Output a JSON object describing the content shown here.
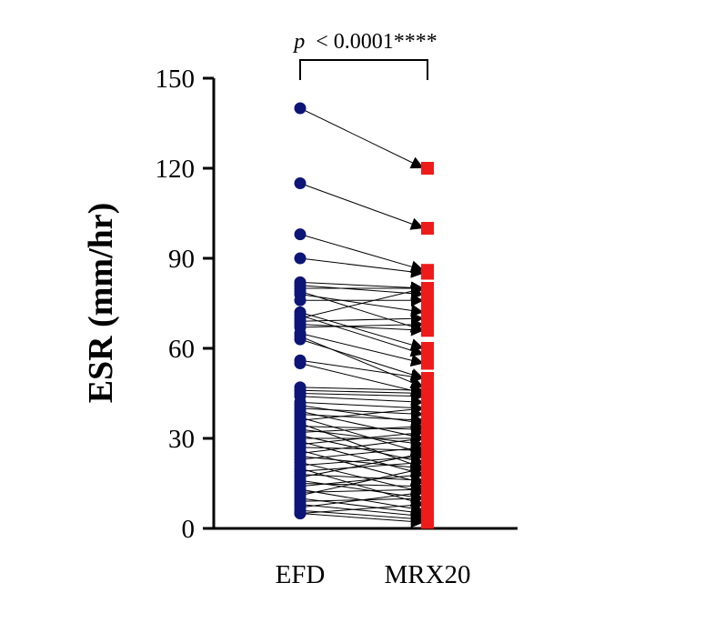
{
  "chart_data": {
    "type": "scatter",
    "subtype": "paired before-after plot",
    "categories": [
      "EFD",
      "MRX20"
    ],
    "ylabel": "ESR (mm/hr)",
    "xlabel": "",
    "ylim": [
      0,
      150
    ],
    "yticks": [
      "0",
      "30",
      "60",
      "90",
      "120",
      "150"
    ],
    "grid": false,
    "legend": "none",
    "colors": {
      "EFD": "#0d1577",
      "MRX20": "#ee1b1b",
      "lines": "#000000",
      "axes": "#000000"
    },
    "markers": {
      "EFD": "circle",
      "MRX20": "square"
    },
    "annotation": {
      "p_symbol": "p",
      "text": "< 0.0001****"
    },
    "pairs": [
      [
        140,
        120
      ],
      [
        115,
        100
      ],
      [
        98,
        86
      ],
      [
        90,
        85
      ],
      [
        82,
        80
      ],
      [
        81,
        78
      ],
      [
        80,
        80
      ],
      [
        79,
        66
      ],
      [
        78,
        72
      ],
      [
        76,
        76
      ],
      [
        72,
        60
      ],
      [
        71,
        58
      ],
      [
        70,
        80
      ],
      [
        69,
        70
      ],
      [
        68,
        66
      ],
      [
        67,
        68
      ],
      [
        65,
        55
      ],
      [
        64,
        47
      ],
      [
        63,
        50
      ],
      [
        56,
        50
      ],
      [
        55,
        45
      ],
      [
        47,
        46
      ],
      [
        46,
        45
      ],
      [
        45,
        44
      ],
      [
        44,
        42
      ],
      [
        42,
        40
      ],
      [
        41,
        35
      ],
      [
        40,
        38
      ],
      [
        39,
        30
      ],
      [
        38,
        36
      ],
      [
        37,
        25
      ],
      [
        36,
        40
      ],
      [
        35,
        20
      ],
      [
        34,
        33
      ],
      [
        33,
        28
      ],
      [
        32,
        34
      ],
      [
        31,
        22
      ],
      [
        30,
        30
      ],
      [
        29,
        18
      ],
      [
        28,
        32
      ],
      [
        27,
        26
      ],
      [
        26,
        15
      ],
      [
        25,
        30
      ],
      [
        24,
        20
      ],
      [
        23,
        27
      ],
      [
        22,
        12
      ],
      [
        21,
        24
      ],
      [
        20,
        8
      ],
      [
        19,
        22
      ],
      [
        18,
        16
      ],
      [
        17,
        25
      ],
      [
        16,
        10
      ],
      [
        15,
        14
      ],
      [
        14,
        18
      ],
      [
        13,
        6
      ],
      [
        12,
        13
      ],
      [
        11,
        20
      ],
      [
        10,
        5
      ],
      [
        9,
        10
      ],
      [
        8,
        4
      ],
      [
        7,
        12
      ],
      [
        6,
        3
      ],
      [
        5,
        8
      ],
      [
        5,
        2
      ]
    ]
  }
}
